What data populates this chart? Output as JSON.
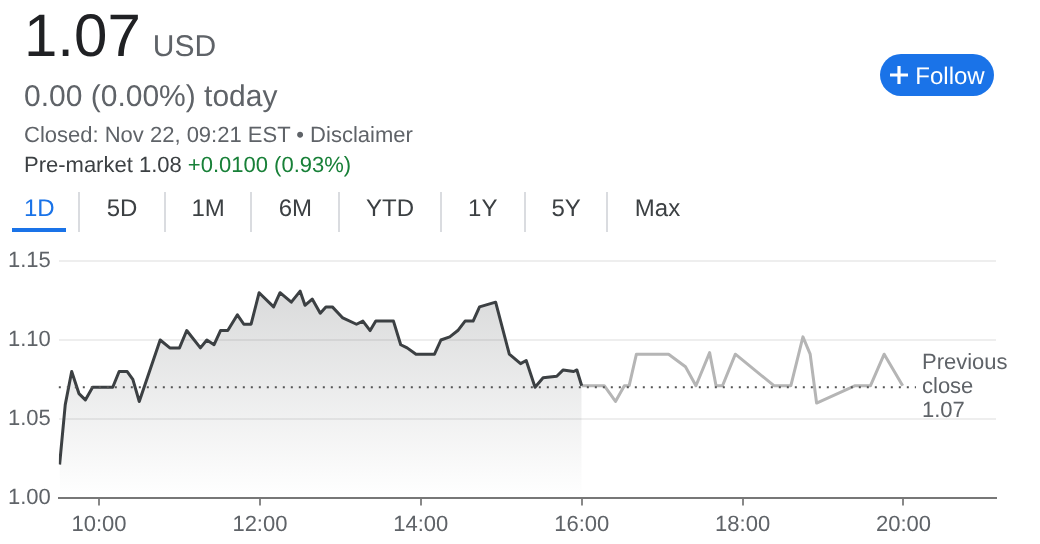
{
  "chart_data": {
    "type": "line",
    "title": "1.07 USD",
    "subtitle": "0.00 (0.00%) today",
    "annotations": [
      "Closed: Nov 22, 09:21 EST • Disclaimer",
      "Pre-market 1.08",
      "+0.0100 (0.93%)",
      "Follow",
      "1D",
      "5D",
      "1M",
      "6M",
      "YTD",
      "1Y",
      "5Y",
      "Max"
    ],
    "xlim": [
      9.5,
      21.15
    ],
    "xticks": [
      {
        "value": 10,
        "label": "10:00"
      },
      {
        "value": 12,
        "label": "12:00"
      },
      {
        "value": 14,
        "label": "14:00"
      },
      {
        "value": 16,
        "label": "16:00"
      },
      {
        "value": 18,
        "label": "18:00"
      },
      {
        "value": 20,
        "label": "20:00"
      }
    ],
    "ylim": [
      1.0,
      1.15
    ],
    "yticks": [
      {
        "value": 1.0,
        "label": "1.00"
      },
      1.05,
      {
        "value": 1.1,
        "label": "1.10"
      },
      1.15
    ],
    "grid": "y",
    "marker": "none",
    "line_style": "solid",
    "ref_lines": [
      {
        "axis": "y",
        "value": 1.07,
        "label": "Previous close 1.07",
        "line_style": "dotted",
        "color": "#555555"
      }
    ],
    "series": [
      {
        "type": "area",
        "color": "#3c4043",
        "x": [
          9.51,
          9.58,
          9.66,
          9.75,
          9.83,
          9.92,
          10.17,
          10.25,
          10.35,
          10.42,
          10.5,
          10.76,
          10.88,
          11.0,
          11.09,
          11.26,
          11.34,
          11.43,
          11.51,
          11.6,
          11.72,
          11.8,
          11.89,
          11.99,
          12.17,
          12.25,
          12.39,
          12.5,
          12.56,
          12.65,
          12.75,
          12.82,
          12.9,
          13.03,
          13.2,
          13.28,
          13.37,
          13.44,
          13.66,
          13.75,
          13.83,
          13.94,
          14.17,
          14.25,
          14.36,
          14.46,
          14.55,
          14.65,
          14.73,
          14.93,
          15.1,
          15.24,
          15.31,
          15.42,
          15.52,
          15.69,
          15.77,
          15.9,
          15.94,
          16.0
        ],
        "values": [
          1.021,
          1.059,
          1.08,
          1.066,
          1.062,
          1.07,
          1.07,
          1.08,
          1.08,
          1.075,
          1.061,
          1.1,
          1.095,
          1.095,
          1.106,
          1.095,
          1.1,
          1.097,
          1.106,
          1.106,
          1.116,
          1.11,
          1.11,
          1.13,
          1.121,
          1.13,
          1.124,
          1.131,
          1.122,
          1.126,
          1.117,
          1.121,
          1.121,
          1.114,
          1.11,
          1.112,
          1.106,
          1.112,
          1.112,
          1.097,
          1.095,
          1.091,
          1.091,
          1.1,
          1.102,
          1.106,
          1.112,
          1.112,
          1.121,
          1.124,
          1.091,
          1.085,
          1.087,
          1.07,
          1.076,
          1.077,
          1.081,
          1.08,
          1.081,
          1.071
        ]
      },
      {
        "type": "line",
        "color": "#b5b5b5",
        "x": [
          16.0,
          16.28,
          16.42,
          16.53,
          16.59,
          16.68,
          17.08,
          17.29,
          17.42,
          17.59,
          17.67,
          17.75,
          17.91,
          18.39,
          18.6,
          18.75,
          18.84,
          18.92,
          19.4,
          19.59,
          19.76,
          19.99
        ],
        "values": [
          1.071,
          1.071,
          1.061,
          1.071,
          1.071,
          1.091,
          1.091,
          1.083,
          1.071,
          1.092,
          1.071,
          1.071,
          1.091,
          1.071,
          1.071,
          1.102,
          1.091,
          1.06,
          1.071,
          1.071,
          1.091,
          1.071
        ]
      }
    ]
  }
}
